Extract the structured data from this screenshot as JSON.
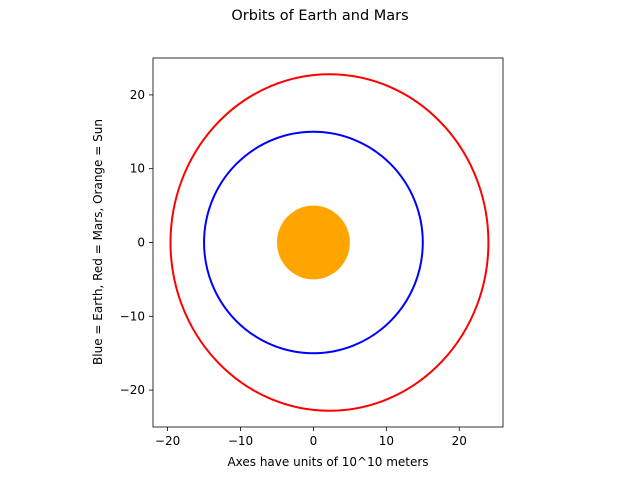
{
  "chart_data": {
    "type": "scatter",
    "title": "Orbits of Earth and Mars",
    "xlabel": "Axes have units of 10^10 meters",
    "ylabel": "Blue = Earth, Red = Mars, Orange = Sun",
    "xlim": [
      -22,
      26
    ],
    "ylim": [
      -25,
      25
    ],
    "xticks": [
      -20,
      -10,
      0,
      10,
      20
    ],
    "yticks": [
      -20,
      -10,
      0,
      10,
      20
    ],
    "xtick_labels": [
      "−20",
      "−10",
      "0",
      "10",
      "20"
    ],
    "ytick_labels": [
      "−20",
      "−10",
      "0",
      "10",
      "20"
    ],
    "grid": false,
    "bodies": [
      {
        "body": "Earth",
        "kind": "orbit",
        "color": "#0000ff",
        "center": [
          0,
          0
        ],
        "semi_major": 15,
        "semi_minor": 15
      },
      {
        "body": "Mars",
        "kind": "orbit",
        "color": "#ff0000",
        "center": [
          2.2,
          0
        ],
        "semi_major": 21.8,
        "semi_minor": 22.8
      },
      {
        "body": "Sun",
        "kind": "disk",
        "color": "#ffa500",
        "center": [
          0,
          0
        ],
        "radius": 5
      }
    ]
  }
}
